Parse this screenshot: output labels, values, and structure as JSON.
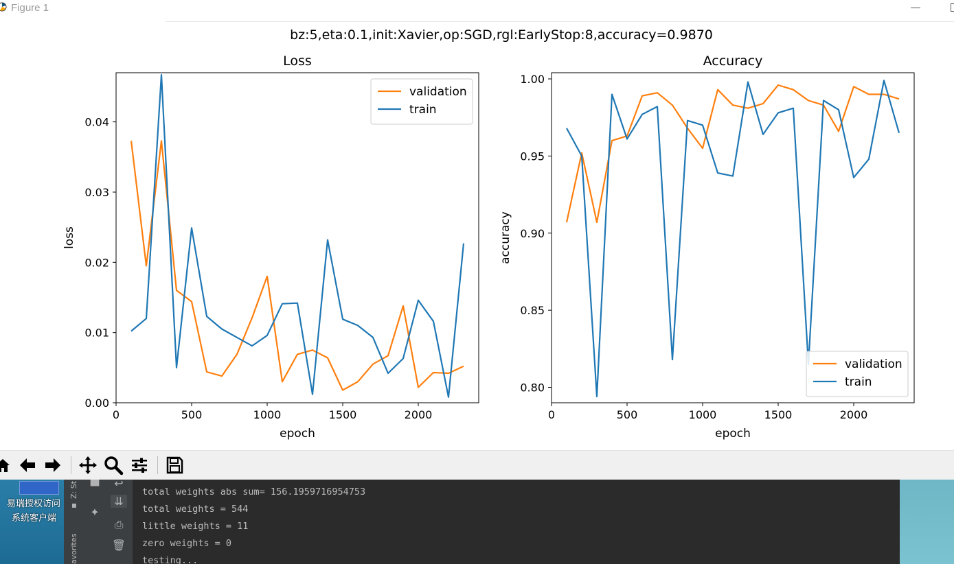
{
  "window": {
    "title": "Figure 1"
  },
  "figure": {
    "suptitle": "bz:5,eta:0.1,init:Xavier,op:SGD,rgl:EarlyStop:8,accuracy=0.9870"
  },
  "chart_data": [
    {
      "type": "line",
      "title": "Loss",
      "xlabel": "epoch",
      "ylabel": "loss",
      "xlim": [
        0,
        2400
      ],
      "ylim": [
        0,
        0.047
      ],
      "xticks": [
        0,
        500,
        1000,
        1500,
        2000
      ],
      "yticks": [
        0.0,
        0.01,
        0.02,
        0.03,
        0.04
      ],
      "ytick_labels": [
        "0.00",
        "0.01",
        "0.02",
        "0.03",
        "0.04"
      ],
      "legend_position": "upper right",
      "x": [
        100,
        200,
        300,
        400,
        500,
        600,
        700,
        800,
        900,
        1000,
        1100,
        1200,
        1300,
        1400,
        1500,
        1600,
        1700,
        1800,
        1900,
        2000,
        2100,
        2200,
        2300
      ],
      "series": [
        {
          "name": "validation",
          "color": "#ff7f0e",
          "values": [
            0.0373,
            0.0195,
            0.0373,
            0.016,
            0.0144,
            0.0044,
            0.0038,
            0.0069,
            0.0121,
            0.018,
            0.003,
            0.0069,
            0.0075,
            0.0064,
            0.0018,
            0.003,
            0.0055,
            0.0067,
            0.0138,
            0.0022,
            0.0043,
            0.0042,
            0.0052
          ]
        },
        {
          "name": "train",
          "color": "#1f77b4",
          "values": [
            0.0102,
            0.012,
            0.0467,
            0.005,
            0.0249,
            0.0123,
            0.0105,
            0.0093,
            0.0081,
            0.0096,
            0.0141,
            0.0142,
            0.0012,
            0.0232,
            0.0119,
            0.011,
            0.0093,
            0.0042,
            0.0063,
            0.0146,
            0.0116,
            0.0008,
            0.0227
          ]
        }
      ]
    },
    {
      "type": "line",
      "title": "Accuracy",
      "xlabel": "epoch",
      "ylabel": "accuracy",
      "xlim": [
        0,
        2400
      ],
      "ylim": [
        0.79,
        1.004
      ],
      "xticks": [
        0,
        500,
        1000,
        1500,
        2000
      ],
      "yticks": [
        0.8,
        0.85,
        0.9,
        0.95,
        1.0
      ],
      "ytick_labels": [
        "0.80",
        "0.85",
        "0.90",
        "0.95",
        "1.00"
      ],
      "legend_position": "lower right",
      "x": [
        100,
        200,
        300,
        400,
        500,
        600,
        700,
        800,
        900,
        1000,
        1100,
        1200,
        1300,
        1400,
        1500,
        1600,
        1700,
        1800,
        1900,
        2000,
        2100,
        2200,
        2300
      ],
      "series": [
        {
          "name": "validation",
          "color": "#ff7f0e",
          "values": [
            0.907,
            0.952,
            0.907,
            0.96,
            0.963,
            0.989,
            0.991,
            0.983,
            0.968,
            0.955,
            0.993,
            0.983,
            0.981,
            0.984,
            0.996,
            0.993,
            0.986,
            0.983,
            0.966,
            0.995,
            0.99,
            0.99,
            0.987
          ]
        },
        {
          "name": "train",
          "color": "#1f77b4",
          "values": [
            0.968,
            0.95,
            0.794,
            0.99,
            0.961,
            0.977,
            0.982,
            0.818,
            0.973,
            0.97,
            0.939,
            0.937,
            0.998,
            0.964,
            0.978,
            0.981,
            0.815,
            0.986,
            0.98,
            0.936,
            0.948,
            0.999,
            0.965
          ]
        }
      ]
    }
  ],
  "toolbar": {
    "buttons": [
      "home-icon",
      "back-icon",
      "forward-icon",
      "pan-icon",
      "zoom-icon",
      "configure-subplots-icon",
      "save-icon"
    ]
  },
  "desktop": {
    "left_icon_label_1": "易瑞授权访问",
    "left_icon_label_2": "系统客户端"
  },
  "ide": {
    "side_label_top": "Z: St",
    "side_label_bottom": "avorites"
  },
  "console": {
    "lines": [
      "total weights abs sum= 156.1959716954753",
      "total weights = 544",
      "little weights = 11",
      "zero weights = 0",
      "testing..."
    ]
  }
}
